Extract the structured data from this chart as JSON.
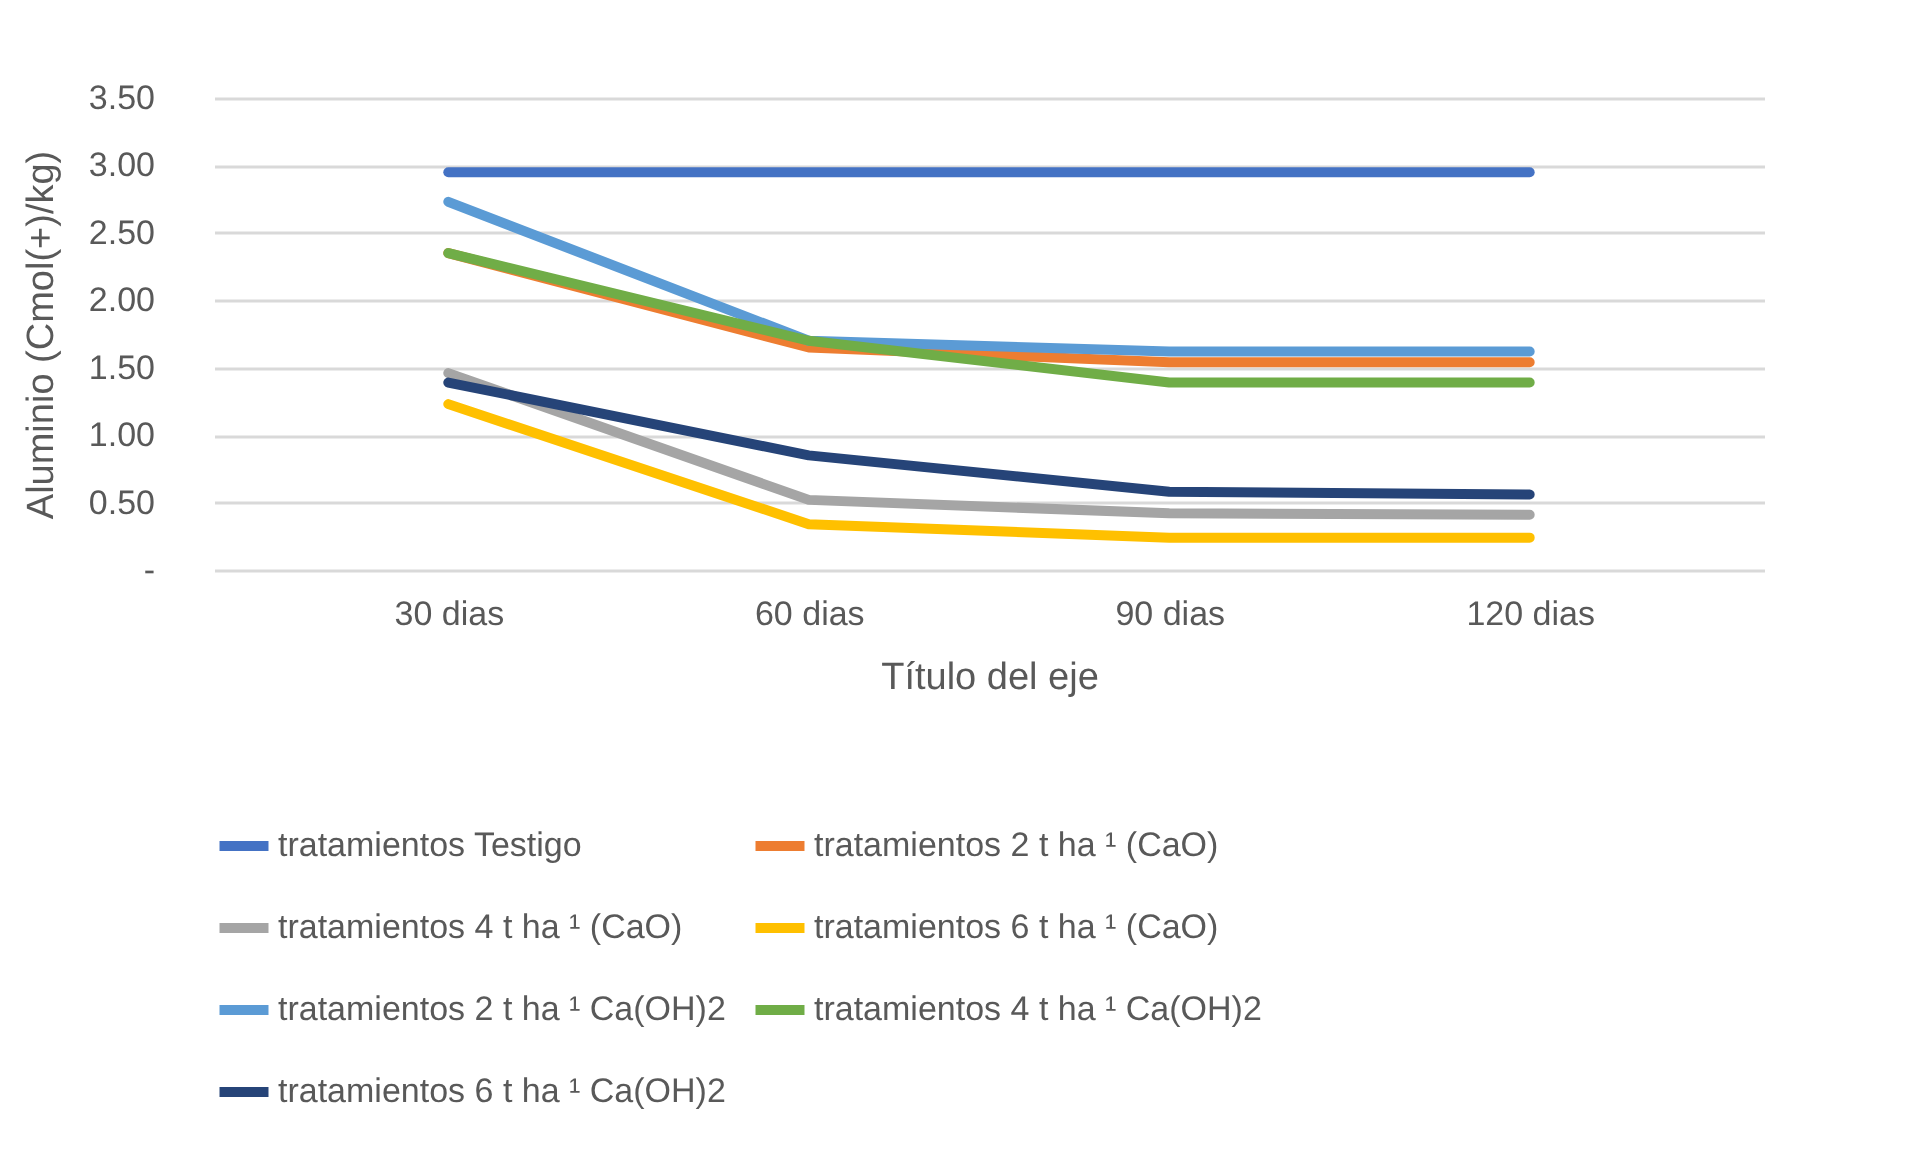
{
  "chart_data": {
    "type": "line",
    "xlabel": "Título del eje",
    "ylabel": "Aluminio (Cmol(+)/kg)",
    "categories": [
      "30 dias",
      "60 dias",
      "90 dias",
      "120 dias"
    ],
    "series": [
      {
        "name": "tratamientos Testigo",
        "color": "#4472c4",
        "values": [
          2.95,
          2.95,
          2.95,
          2.95
        ]
      },
      {
        "name": "tratamientos 2 t ha ¹ (CaO)",
        "color": "#ed7d31",
        "values": [
          2.35,
          1.65,
          1.54,
          1.54
        ]
      },
      {
        "name": "tratamientos 4 t ha ¹ (CaO)",
        "color": "#a5a5a5",
        "values": [
          1.46,
          0.52,
          0.42,
          0.41
        ]
      },
      {
        "name": "tratamientos 6 t ha ¹ (CaO)",
        "color": "#ffc000",
        "values": [
          1.23,
          0.34,
          0.24,
          0.24
        ]
      },
      {
        "name": "tratamientos 2 t ha ¹ Ca(OH)2",
        "color": "#5b9bd5",
        "values": [
          2.73,
          1.7,
          1.62,
          1.62
        ]
      },
      {
        "name": "tratamientos 4 t ha ¹ Ca(OH)2",
        "color": "#70ad47",
        "values": [
          2.35,
          1.7,
          1.39,
          1.39
        ]
      },
      {
        "name": "tratamientos 6 t ha ¹ Ca(OH)2",
        "color": "#264478",
        "values": [
          1.39,
          0.85,
          0.58,
          0.56
        ]
      }
    ],
    "ylim": [
      0,
      3.5
    ],
    "yticks": [
      {
        "value": 0,
        "label": "-"
      },
      {
        "value": 0.5,
        "label": "0.50"
      },
      {
        "value": 1,
        "label": "1.00"
      },
      {
        "value": 1.5,
        "label": "1.50"
      },
      {
        "value": 2,
        "label": "2.00"
      },
      {
        "value": 2.5,
        "label": "2.50"
      },
      {
        "value": 3,
        "label": "3.00"
      },
      {
        "value": 3.5,
        "label": "3.50"
      }
    ],
    "grid": "y",
    "legend": "bottom",
    "line_style": "solid"
  }
}
